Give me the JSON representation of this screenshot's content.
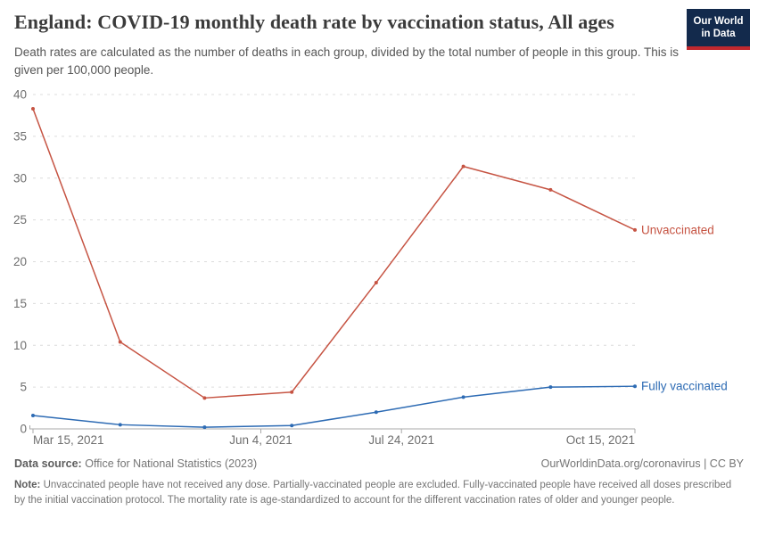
{
  "logo": {
    "line1": "Our World",
    "line2": "in Data",
    "background_color": "#132a4c",
    "bar_color": "#c0282e"
  },
  "footer": {
    "source_label": "Data source:",
    "source_text": "Office for National Statistics (2023)",
    "attribution": "OurWorldinData.org/coronavirus | CC BY",
    "note_label": "Note:",
    "note_text": "Unvaccinated people have not received any dose. Partially-vaccinated people are excluded. Fully-vaccinated people have received all doses prescribed by the initial vaccination protocol. The mortality rate is age-standardized to account for the different vaccination rates of older and younger people."
  },
  "chart_data": {
    "type": "line",
    "title": "England: COVID-19 monthly death rate by vaccination status, All ages",
    "subtitle": "Death rates are calculated as the number of deaths in each group, divided by the total number of people in this group. This is given per 100,000 people.",
    "x": [
      "Mar 15, 2021",
      "Apr 15, 2021",
      "May 15, 2021",
      "Jun 15, 2021",
      "Jul 15, 2021",
      "Aug 15, 2021",
      "Sep 15, 2021",
      "Oct 15, 2021"
    ],
    "x_day_offsets": [
      0,
      31,
      61,
      92,
      122,
      153,
      184,
      214
    ],
    "x_ticks": [
      {
        "label": "Mar 15, 2021",
        "day": 0
      },
      {
        "label": "Jun 4, 2021",
        "day": 81
      },
      {
        "label": "Jul 24, 2021",
        "day": 131
      },
      {
        "label": "Oct 15, 2021",
        "day": 214
      }
    ],
    "ylim": [
      0,
      40
    ],
    "y_tick_step": 5,
    "grid": true,
    "legend_position": "end-of-line-labels",
    "axis_color": "#a8a8a8",
    "grid_color": "#dcdcdc",
    "tick_label_color": "#6e6e6e",
    "series": [
      {
        "name": "Unvaccinated",
        "color": "#c65443",
        "values": [
          38.3,
          10.4,
          3.7,
          4.4,
          17.5,
          31.4,
          28.6,
          23.8
        ]
      },
      {
        "name": "Fully vaccinated",
        "color": "#2d6bb4",
        "values": [
          1.6,
          0.5,
          0.2,
          0.4,
          2.0,
          3.8,
          5.0,
          5.1
        ]
      }
    ]
  }
}
